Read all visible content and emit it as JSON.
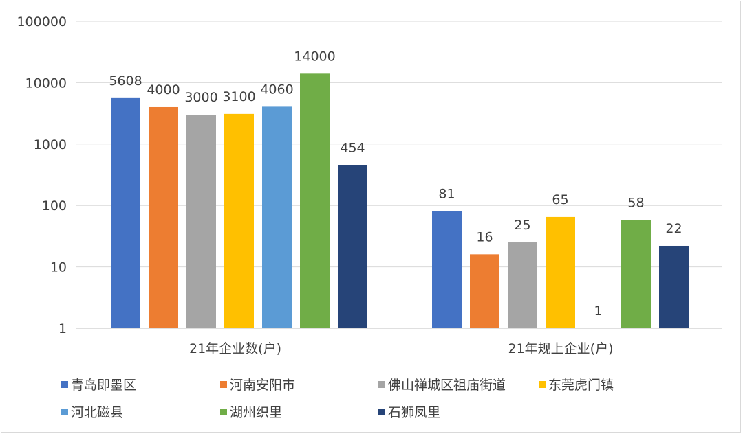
{
  "chart_data": {
    "type": "bar",
    "scale": "log10",
    "ylim": [
      1,
      100000
    ],
    "grid": true,
    "legend_position": "bottom",
    "y_ticks": [
      "1",
      "10",
      "100",
      "1000",
      "10000",
      "100000"
    ],
    "y_tick_values": [
      1,
      10,
      100,
      1000,
      10000,
      100000
    ],
    "categories": [
      "21年企业数(户)",
      "21年规上企业(户)"
    ],
    "series": [
      {
        "name": "青岛即墨区",
        "color": "#4472C4",
        "values": [
          5608,
          81
        ],
        "labels": [
          "5608",
          "81"
        ]
      },
      {
        "name": "河南安阳市",
        "color": "#ED7D31",
        "values": [
          4000,
          16
        ],
        "labels": [
          "4000",
          "16"
        ]
      },
      {
        "name": "佛山禅城区祖庙街道",
        "color": "#A5A5A5",
        "values": [
          3000,
          25
        ],
        "labels": [
          "3000",
          "25"
        ]
      },
      {
        "name": "东莞虎门镇",
        "color": "#FFC000",
        "values": [
          3100,
          65
        ],
        "labels": [
          "3100",
          "65"
        ]
      },
      {
        "name": "河北磁县",
        "color": "#5B9BD5",
        "values": [
          4060,
          1
        ],
        "labels": [
          "4060",
          "1"
        ]
      },
      {
        "name": "湖州织里",
        "color": "#70AD47",
        "values": [
          14000,
          58
        ],
        "labels": [
          "14000",
          "58"
        ]
      },
      {
        "name": "石狮凤里",
        "color": "#264478",
        "values": [
          454,
          22
        ],
        "labels": [
          "454",
          "22"
        ]
      }
    ]
  }
}
